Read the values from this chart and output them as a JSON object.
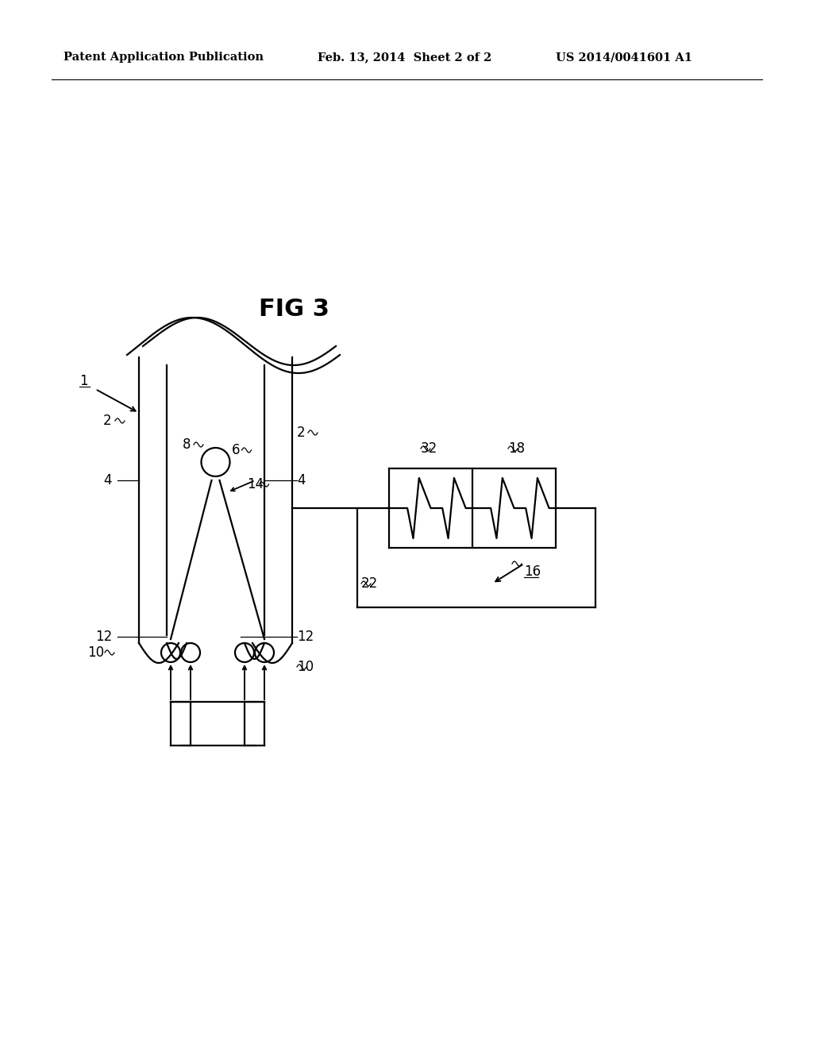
{
  "bg_color": "#ffffff",
  "header_left": "Patent Application Publication",
  "header_mid": "Feb. 13, 2014  Sheet 2 of 2",
  "header_right": "US 2014/0041601 A1",
  "fig_title": "FIG 3",
  "lw": 1.6
}
